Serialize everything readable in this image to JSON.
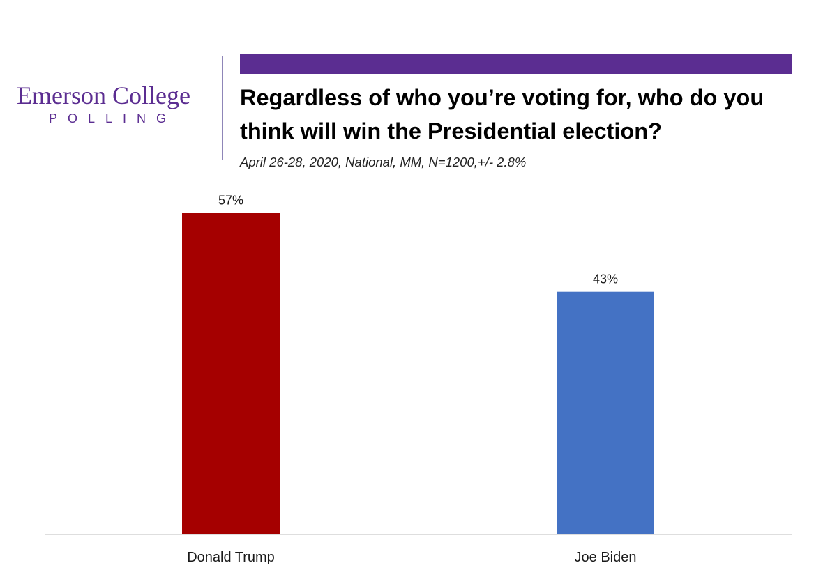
{
  "logo": {
    "name": "Emerson College",
    "sub": "POLLING"
  },
  "header": {
    "title": "Regardless of who you’re voting for, who do you think will win the Presidential election?",
    "subtitle": "April 26-28, 2020, National, MM,  N=1200,+/-  2.8%"
  },
  "colors": {
    "brand_purple": "#5b2d91",
    "trump_red": "#a50000",
    "biden_blue": "#4472c4"
  },
  "chart_data": {
    "type": "bar",
    "title": "Regardless of who you’re voting for, who do you think will win the Presidential election?",
    "xlabel": "",
    "ylabel": "",
    "categories": [
      "Donald Trump",
      "Joe Biden"
    ],
    "values": [
      57,
      43
    ],
    "data_labels": [
      "57%",
      "43%"
    ],
    "bar_colors": [
      "#a50000",
      "#4472c4"
    ],
    "ylim": [
      0,
      60
    ],
    "grid": false,
    "legend": "none"
  }
}
